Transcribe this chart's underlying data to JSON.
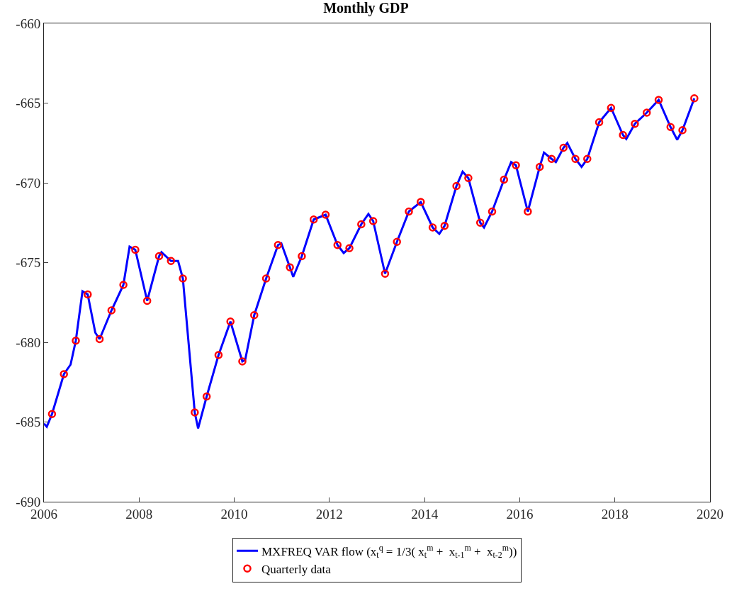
{
  "chart_data": {
    "type": "line",
    "title": "Monthly GDP",
    "xlim": [
      2006,
      2020
    ],
    "xticks": [
      2006,
      2008,
      2010,
      2012,
      2014,
      2016,
      2018,
      2020
    ],
    "ylim": [
      -690,
      -660
    ],
    "yticks": [
      -690,
      -685,
      -680,
      -675,
      -670,
      -665,
      -660
    ],
    "grid": false,
    "legend": "bottom",
    "series": [
      {
        "name": "MXFREQ VAR flow (x$_{t}$$^{q}$ = 1/3( x$_{t}$$^{m}$ +  x$_{t-1}$$^{m}$ +  x$_{t-2}$$^{m}$))",
        "color": "#0000ff",
        "marker": "none",
        "line_style": "solid",
        "x": [
          2006.0,
          2006.06,
          2006.17,
          2006.42,
          2006.56,
          2006.67,
          2006.81,
          2006.92,
          2007.08,
          2007.17,
          2007.42,
          2007.67,
          2007.8,
          2007.92,
          2008.17,
          2008.42,
          2008.47,
          2008.67,
          2008.82,
          2008.92,
          2009.17,
          2009.24,
          2009.42,
          2009.67,
          2009.92,
          2010.17,
          2010.23,
          2010.42,
          2010.67,
          2010.92,
          2010.99,
          2011.17,
          2011.24,
          2011.42,
          2011.67,
          2011.92,
          2012.17,
          2012.3,
          2012.42,
          2012.67,
          2012.82,
          2012.92,
          2013.17,
          2013.42,
          2013.67,
          2013.92,
          2014.17,
          2014.31,
          2014.42,
          2014.67,
          2014.8,
          2014.92,
          2015.17,
          2015.25,
          2015.42,
          2015.67,
          2015.82,
          2015.92,
          2016.17,
          2016.42,
          2016.51,
          2016.67,
          2016.76,
          2016.92,
          2017.0,
          2017.17,
          2017.3,
          2017.42,
          2017.67,
          2017.92,
          2018.17,
          2018.24,
          2018.42,
          2018.67,
          2018.92,
          2019.17,
          2019.31,
          2019.42,
          2019.67
        ],
        "values": [
          -685.1,
          -685.3,
          -684.5,
          -682.0,
          -681.4,
          -679.9,
          -676.8,
          -677.0,
          -679.4,
          -679.8,
          -678.0,
          -676.4,
          -674.0,
          -674.2,
          -677.4,
          -674.6,
          -674.35,
          -674.9,
          -674.9,
          -676.0,
          -684.4,
          -685.4,
          -683.4,
          -680.8,
          -678.7,
          -681.2,
          -681.1,
          -678.3,
          -676.0,
          -673.9,
          -673.8,
          -675.3,
          -675.9,
          -674.6,
          -672.3,
          -672.0,
          -673.9,
          -674.4,
          -674.1,
          -672.6,
          -671.95,
          -672.4,
          -675.7,
          -673.7,
          -671.8,
          -671.2,
          -672.8,
          -673.2,
          -672.7,
          -670.2,
          -669.3,
          -669.7,
          -672.5,
          -672.8,
          -671.8,
          -669.8,
          -668.7,
          -668.9,
          -671.8,
          -669.0,
          -668.1,
          -668.5,
          -668.7,
          -667.8,
          -667.5,
          -668.5,
          -669.0,
          -668.5,
          -666.2,
          -665.3,
          -667.0,
          -667.25,
          -666.3,
          -665.6,
          -664.8,
          -666.5,
          -667.3,
          -666.7,
          -664.7
        ]
      },
      {
        "name": "Quarterly data",
        "type": "scatter",
        "color": "#ff0000",
        "marker": "circle",
        "x": [
          2006.17,
          2006.42,
          2006.67,
          2006.92,
          2007.17,
          2007.42,
          2007.67,
          2007.92,
          2008.17,
          2008.42,
          2008.67,
          2008.92,
          2009.17,
          2009.42,
          2009.67,
          2009.92,
          2010.17,
          2010.42,
          2010.67,
          2010.92,
          2011.17,
          2011.42,
          2011.67,
          2011.92,
          2012.17,
          2012.42,
          2012.67,
          2012.92,
          2013.17,
          2013.42,
          2013.67,
          2013.92,
          2014.17,
          2014.42,
          2014.67,
          2014.92,
          2015.17,
          2015.42,
          2015.67,
          2015.92,
          2016.17,
          2016.42,
          2016.67,
          2016.92,
          2017.17,
          2017.42,
          2017.67,
          2017.92,
          2018.17,
          2018.42,
          2018.67,
          2018.92,
          2019.17,
          2019.42,
          2019.67
        ],
        "values": [
          -684.5,
          -682.0,
          -679.9,
          -677.0,
          -679.8,
          -678.0,
          -676.4,
          -674.2,
          -677.4,
          -674.6,
          -674.9,
          -676.0,
          -684.4,
          -683.4,
          -680.8,
          -678.7,
          -681.2,
          -678.3,
          -676.0,
          -673.9,
          -675.3,
          -674.6,
          -672.3,
          -672.0,
          -673.9,
          -674.1,
          -672.6,
          -672.4,
          -675.7,
          -673.7,
          -671.8,
          -671.2,
          -672.8,
          -672.7,
          -670.2,
          -669.7,
          -672.5,
          -671.8,
          -669.8,
          -668.9,
          -671.8,
          -669.0,
          -668.5,
          -667.8,
          -668.5,
          -668.5,
          -666.2,
          -665.3,
          -667.0,
          -666.3,
          -665.6,
          -664.8,
          -666.5,
          -666.7,
          -664.7
        ]
      }
    ]
  }
}
